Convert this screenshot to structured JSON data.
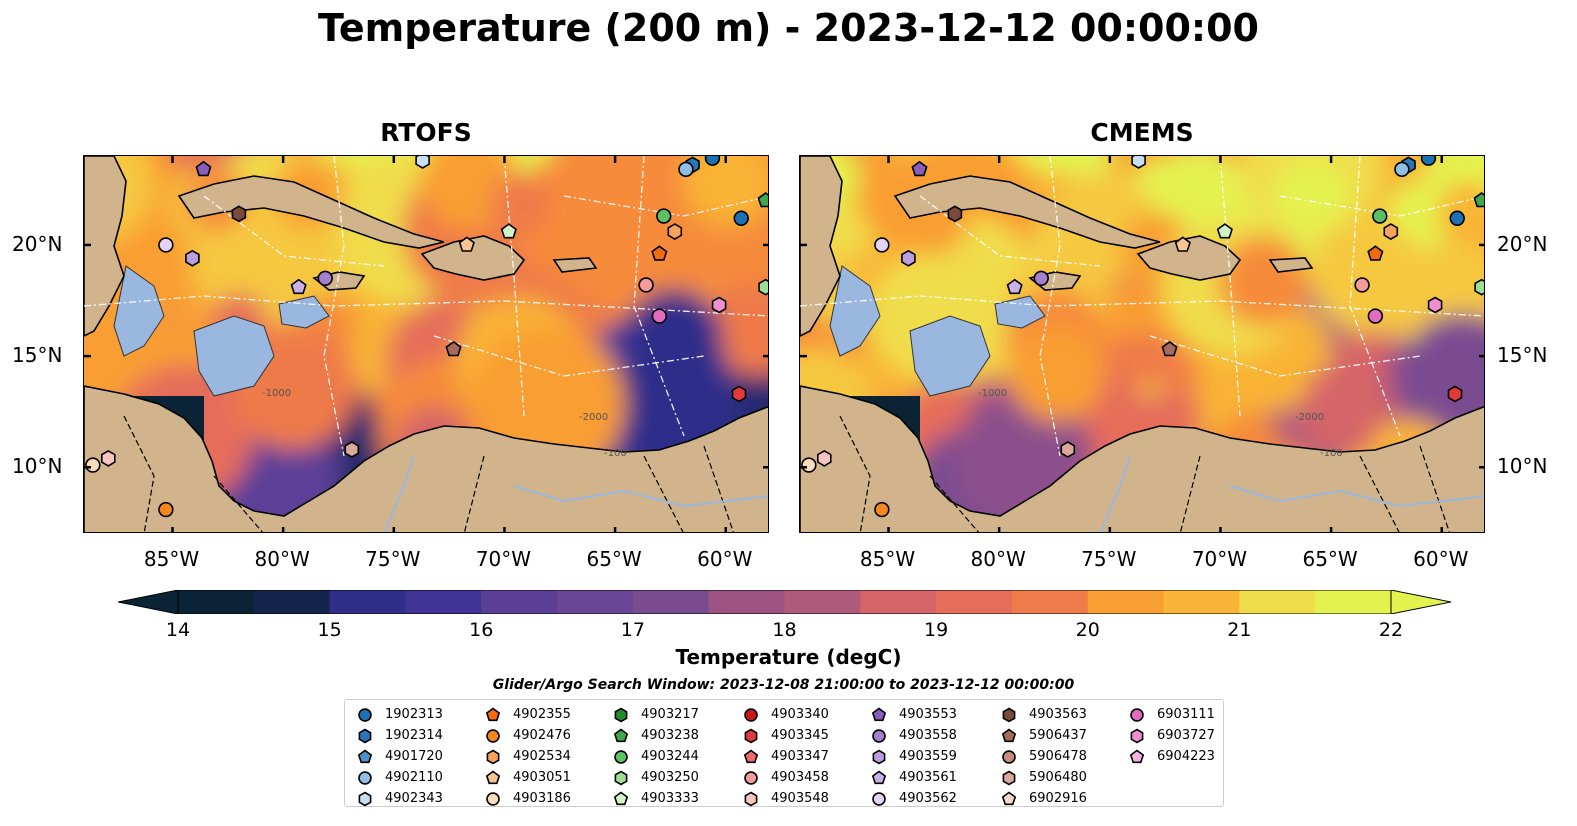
{
  "title": "Temperature (200 m) - 2023-12-12 00:00:00",
  "panels": [
    {
      "id": "rtofs",
      "title": "RTOFS"
    },
    {
      "id": "cmems",
      "title": "CMEMS"
    }
  ],
  "map": {
    "lon_range": [
      -89,
      -58
    ],
    "lat_range": [
      7,
      24
    ],
    "lon_ticks": [
      "85°W",
      "80°W",
      "75°W",
      "70°W",
      "65°W",
      "60°W"
    ],
    "lon_tick_values": [
      -85,
      -80,
      -75,
      -70,
      -65,
      -60
    ],
    "lat_ticks": [
      "10°N",
      "15°N",
      "20°N"
    ],
    "lat_tick_values": [
      10,
      15,
      20
    ],
    "contour_labels": [
      "-100",
      "-1000",
      "-2000"
    ],
    "colors": {
      "land": "#d2b48c",
      "shallow_water": "#9ab7e0",
      "rivers": "#9ab7e0",
      "eez": "#ffffff"
    }
  },
  "colorbar": {
    "label": "Temperature (degC)",
    "min": 14,
    "max": 22,
    "step": 0.5,
    "ticks": [
      "14",
      "15",
      "16",
      "17",
      "18",
      "19",
      "20",
      "21",
      "22"
    ],
    "extend": "both",
    "colormap": [
      "#0a2436",
      "#14244c",
      "#25296e",
      "#2f2f8a",
      "#3f3496",
      "#4c3a98",
      "#5b3f97",
      "#6a4595",
      "#7a4b91",
      "#8c508b",
      "#9d5484",
      "#b05a7c",
      "#c35f72",
      "#d56568",
      "#e56d5a",
      "#ef7a4a",
      "#f68b3a",
      "#f99e33",
      "#f9b336",
      "#f6c83f",
      "#f0dd4c",
      "#e4f24f"
    ]
  },
  "search_window": "Glider/Argo Search Window: 2023-12-08 21:00:00 to 2023-12-12 00:00:00",
  "legend": [
    {
      "id": "1902313",
      "shape": "circle",
      "color": "#1f6fb4"
    },
    {
      "id": "1902314",
      "shape": "hexagon",
      "color": "#2b75b8"
    },
    {
      "id": "4901720",
      "shape": "pentagon",
      "color": "#4f90c8"
    },
    {
      "id": "4902110",
      "shape": "circle",
      "color": "#8fbfe6"
    },
    {
      "id": "4902343",
      "shape": "hexagon",
      "color": "#c8def2"
    },
    {
      "id": "4902355",
      "shape": "pentagon",
      "color": "#f26b0f"
    },
    {
      "id": "4902476",
      "shape": "circle",
      "color": "#f5871f"
    },
    {
      "id": "4902534",
      "shape": "hexagon",
      "color": "#f9a45a"
    },
    {
      "id": "4903051",
      "shape": "pentagon",
      "color": "#fbc591"
    },
    {
      "id": "4903186",
      "shape": "circle",
      "color": "#fcdcbc"
    },
    {
      "id": "4903217",
      "shape": "hexagon",
      "color": "#238b2f"
    },
    {
      "id": "4903238",
      "shape": "pentagon",
      "color": "#3ea94a"
    },
    {
      "id": "4903244",
      "shape": "circle",
      "color": "#5cc160"
    },
    {
      "id": "4903250",
      "shape": "hexagon",
      "color": "#9ddf93"
    },
    {
      "id": "4903333",
      "shape": "pentagon",
      "color": "#d2f5c5"
    },
    {
      "id": "4903340",
      "shape": "circle",
      "color": "#c81a1c"
    },
    {
      "id": "4903345",
      "shape": "hexagon",
      "color": "#e03a3c"
    },
    {
      "id": "4903347",
      "shape": "pentagon",
      "color": "#ef6a6a"
    },
    {
      "id": "4903458",
      "shape": "circle",
      "color": "#f49b9b"
    },
    {
      "id": "4903548",
      "shape": "hexagon",
      "color": "#f8c4c0"
    },
    {
      "id": "4903553",
      "shape": "pentagon",
      "color": "#8a5dbd"
    },
    {
      "id": "4903558",
      "shape": "circle",
      "color": "#a67fd0"
    },
    {
      "id": "4903559",
      "shape": "hexagon",
      "color": "#bb9ee0"
    },
    {
      "id": "4903561",
      "shape": "pentagon",
      "color": "#c9b1e8"
    },
    {
      "id": "4903562",
      "shape": "circle",
      "color": "#e2d4f6"
    },
    {
      "id": "4903563",
      "shape": "hexagon",
      "color": "#7a4a3c"
    },
    {
      "id": "5906437",
      "shape": "pentagon",
      "color": "#a36b5b"
    },
    {
      "id": "5906478",
      "shape": "circle",
      "color": "#c48d7e"
    },
    {
      "id": "5906480",
      "shape": "hexagon",
      "color": "#dba99c"
    },
    {
      "id": "6902916",
      "shape": "pentagon",
      "color": "#f5d7cf"
    },
    {
      "id": "6903111",
      "shape": "circle",
      "color": "#e36cc0"
    },
    {
      "id": "6903727",
      "shape": "hexagon",
      "color": "#ef8fd1"
    },
    {
      "id": "6904223",
      "shape": "pentagon",
      "color": "#f7b6e2"
    }
  ],
  "floats": [
    {
      "id": "1902313",
      "lon": -59.3,
      "lat": 21.2
    },
    {
      "id": "1902313",
      "lon": -60.6,
      "lat": 23.9
    },
    {
      "id": "1902314",
      "lon": -61.5,
      "lat": 23.6
    },
    {
      "id": "4902110",
      "lon": -61.8,
      "lat": 23.4
    },
    {
      "id": "4902343",
      "lon": -73.7,
      "lat": 23.8
    },
    {
      "id": "4902355",
      "lon": -63.0,
      "lat": 19.6
    },
    {
      "id": "4902476",
      "lon": -85.3,
      "lat": 8.1
    },
    {
      "id": "4902534",
      "lon": -62.3,
      "lat": 20.6
    },
    {
      "id": "4903051",
      "lon": -71.7,
      "lat": 20.0
    },
    {
      "id": "4903186",
      "lon": -88.6,
      "lat": 10.1
    },
    {
      "id": "4903238",
      "lon": -58.2,
      "lat": 22.0
    },
    {
      "id": "4903244",
      "lon": -62.8,
      "lat": 21.3
    },
    {
      "id": "4903250",
      "lon": -58.2,
      "lat": 18.1
    },
    {
      "id": "4903333",
      "lon": -69.8,
      "lat": 20.6
    },
    {
      "id": "4903345",
      "lon": -59.4,
      "lat": 13.3
    },
    {
      "id": "4903548",
      "lon": -87.9,
      "lat": 10.4
    },
    {
      "id": "4903553",
      "lon": -83.6,
      "lat": 23.4
    },
    {
      "id": "4903558",
      "lon": -78.1,
      "lat": 18.5
    },
    {
      "id": "4903559",
      "lon": -84.1,
      "lat": 19.4
    },
    {
      "id": "4903561",
      "lon": -79.3,
      "lat": 18.1
    },
    {
      "id": "4903562",
      "lon": -85.3,
      "lat": 20.0
    },
    {
      "id": "4903563",
      "lon": -82.0,
      "lat": 21.4
    },
    {
      "id": "5906437",
      "lon": -72.3,
      "lat": 15.3
    },
    {
      "id": "5906480",
      "lon": -76.9,
      "lat": 10.8
    },
    {
      "id": "6903111",
      "lon": -63.0,
      "lat": 16.8
    },
    {
      "id": "6903727",
      "lon": -60.3,
      "lat": 17.3
    },
    {
      "id": "4903458",
      "lon": -63.6,
      "lat": 18.2
    }
  ]
}
